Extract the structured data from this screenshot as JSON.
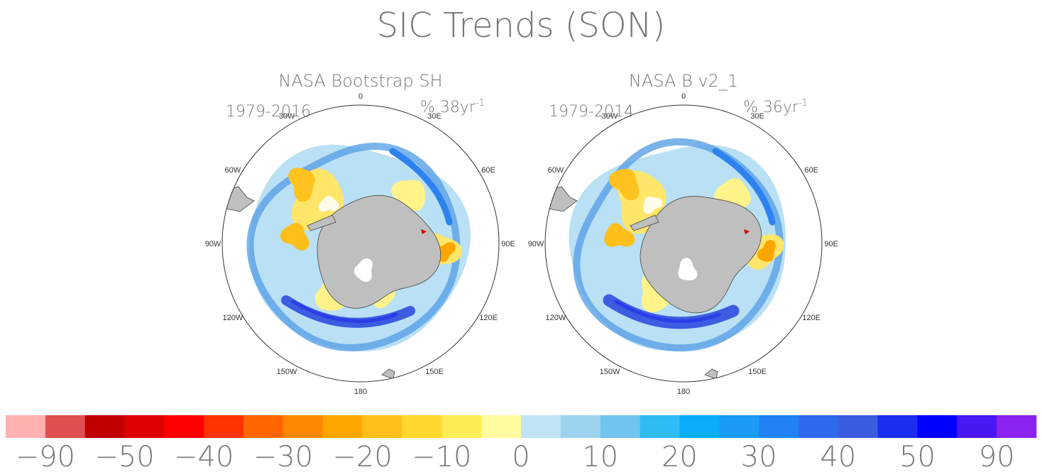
{
  "figure": {
    "title": "SIC Trends (SON)"
  },
  "chart_data": [
    {
      "type": "heatmap",
      "title": "NASA Bootstrap SH",
      "period": "1979-2016",
      "units_prefix": "% 38yr",
      "units_exp": "-1",
      "projection": "south-polar-stereographic",
      "lon_labels": [
        "0",
        "30E",
        "60E",
        "90E",
        "120E",
        "150E",
        "180",
        "150W",
        "120W",
        "90W",
        "60W",
        "30W"
      ]
    },
    {
      "type": "heatmap",
      "title": "NASA B v2_1",
      "period": "1979-2014",
      "units_prefix": "% 36yr",
      "units_exp": "-1",
      "projection": "south-polar-stereographic",
      "lon_labels": [
        "0",
        "30E",
        "60E",
        "90E",
        "120E",
        "150E",
        "180",
        "150W",
        "120W",
        "90W",
        "60W",
        "30W"
      ]
    }
  ],
  "colorbar": {
    "colors": [
      "#ffb0b0",
      "#e05050",
      "#c00000",
      "#dd0000",
      "#ff0000",
      "#ff3300",
      "#ff6600",
      "#ff8800",
      "#ffa500",
      "#ffbf1a",
      "#ffd72e",
      "#ffeb55",
      "#fffca0",
      "#c0e4f5",
      "#9dd3ee",
      "#72c4f0",
      "#2fbcf5",
      "#0aaef8",
      "#1a9bf5",
      "#2082f5",
      "#2e6aee",
      "#3c5ce0",
      "#1a2ef0",
      "#0000ff",
      "#4a18f2",
      "#8a22f0"
    ],
    "tick_labels": [
      "-90",
      "-50",
      "-40",
      "-30",
      "-20",
      "-10",
      "0",
      "10",
      "20",
      "30",
      "40",
      "50",
      "90"
    ]
  }
}
